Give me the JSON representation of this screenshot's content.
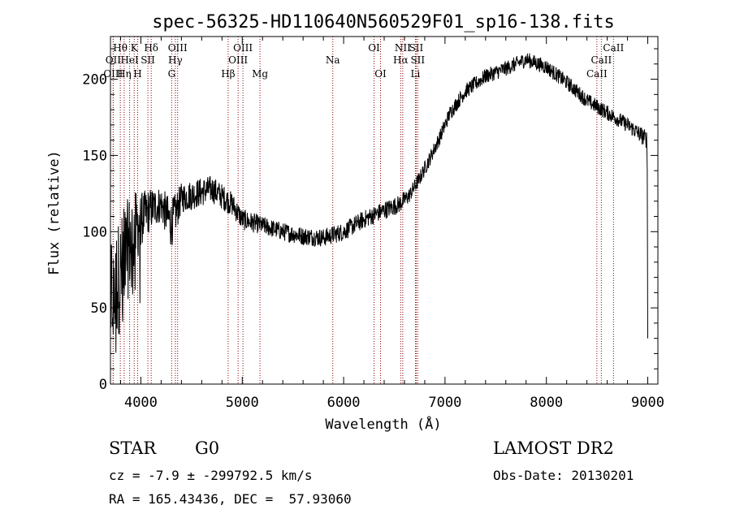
{
  "chart_data": {
    "type": "line",
    "title": "spec-56325-HD110640N560529F01_sp16-138.fits",
    "xlabel": "Wavelength (Å)",
    "ylabel": "Flux (relative)",
    "xlim": [
      3700,
      9100
    ],
    "ylim": [
      0,
      228
    ],
    "x_ticks": [
      4000,
      5000,
      6000,
      7000,
      8000,
      9000
    ],
    "y_ticks": [
      0,
      50,
      100,
      150,
      200
    ],
    "grid": false,
    "legend": "none",
    "line_color": "#000000",
    "marker_color": "#8b0000",
    "spectrum_anchors": {
      "x": [
        3700,
        3800,
        3900,
        4000,
        4100,
        4200,
        4300,
        4400,
        4500,
        4700,
        4900,
        5000,
        5200,
        5400,
        5600,
        5800,
        6000,
        6200,
        6400,
        6550,
        6650,
        6750,
        6850,
        6950,
        7050,
        7200,
        7400,
        7600,
        7800,
        8000,
        8200,
        8400,
        8600,
        8800,
        9000
      ],
      "y": [
        60,
        72,
        95,
        108,
        115,
        118,
        105,
        122,
        124,
        128,
        118,
        108,
        104,
        100,
        97,
        96,
        100,
        108,
        114,
        118,
        124,
        135,
        148,
        162,
        178,
        192,
        202,
        207,
        213,
        208,
        198,
        186,
        178,
        170,
        160
      ],
      "noise": [
        40,
        38,
        32,
        18,
        14,
        12,
        16,
        10,
        10,
        9,
        8,
        7,
        6,
        6,
        6,
        6,
        6,
        6,
        6,
        6,
        5,
        5,
        5,
        5,
        5,
        5,
        5,
        5,
        5,
        5,
        5,
        5,
        5,
        5,
        6
      ]
    },
    "line_markers": [
      {
        "x": 3727,
        "label": "OII",
        "row": 2
      },
      {
        "x": 3727,
        "label": "OIII",
        "row": 3
      },
      {
        "x": 3797,
        "label": "Hθ",
        "row": 1
      },
      {
        "x": 3835,
        "label": "Hη",
        "row": 3
      },
      {
        "x": 3889,
        "label": "HeI",
        "row": 2
      },
      {
        "x": 3934,
        "label": "K",
        "row": 1
      },
      {
        "x": 3968,
        "label": "H",
        "row": 3
      },
      {
        "x": 4069,
        "label": "SII",
        "row": 2
      },
      {
        "x": 4102,
        "label": "Hδ",
        "row": 1
      },
      {
        "x": 4304,
        "label": "G",
        "row": 3
      },
      {
        "x": 4340,
        "label": "Hγ",
        "row": 2
      },
      {
        "x": 4363,
        "label": "OIII",
        "row": 1
      },
      {
        "x": 4861,
        "label": "Hβ",
        "row": 3
      },
      {
        "x": 4959,
        "label": "OIII",
        "row": 2
      },
      {
        "x": 5007,
        "label": "OIII",
        "row": 1
      },
      {
        "x": 5175,
        "label": "Mg",
        "row": 3
      },
      {
        "x": 5893,
        "label": "Na",
        "row": 2
      },
      {
        "x": 6300,
        "label": "OI",
        "row": 1
      },
      {
        "x": 6364,
        "label": "OI",
        "row": 3
      },
      {
        "x": 6563,
        "label": "Hα",
        "row": 2
      },
      {
        "x": 6583,
        "label": "NII",
        "row": 1
      },
      {
        "x": 6708,
        "label": "Li",
        "row": 3
      },
      {
        "x": 6716,
        "label": "SII",
        "row": 1
      },
      {
        "x": 6731,
        "label": "SII",
        "row": 2
      },
      {
        "x": 8498,
        "label": "CaII",
        "row": 3
      },
      {
        "x": 8542,
        "label": "CaII",
        "row": 2
      },
      {
        "x": 8662,
        "label": "CaII",
        "row": 1
      }
    ]
  },
  "info": {
    "object_class": "STAR",
    "subclass": "G0",
    "survey": "LAMOST DR2",
    "redshift": "cz = -7.9 ± -299792.5 km/s",
    "obs_date": "Obs-Date: 20130201",
    "coords": "RA = 165.43436, DEC =  57.93060"
  }
}
